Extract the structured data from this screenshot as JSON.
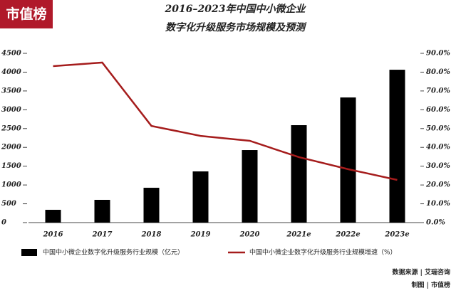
{
  "logo": "市值榜",
  "chart_data": {
    "type": "bar-line",
    "title": "2016–2023年中国中小微企业",
    "subtitle": "数字化升级服务市场规模及预测",
    "categories": [
      "2016",
      "2017",
      "2018",
      "2019",
      "2020",
      "2021e",
      "2022e",
      "2023e"
    ],
    "series": [
      {
        "name": "中国中小微企业数字化升级服务行业规模（亿元）",
        "color": "#000000",
        "type": "bar",
        "values": [
          340,
          605,
          926,
          1361,
          1928,
          2590,
          3327,
          4064
        ]
      },
      {
        "name": "中国中小微企业数字化升级服务行业规模增速（%）",
        "color": "#a51c1c",
        "type": "line",
        "axis": "y2",
        "values": [
          83.2,
          85.1,
          51.4,
          46.1,
          43.5,
          34.8,
          28.4,
          22.7
        ]
      }
    ],
    "ylim": [
      0,
      4500
    ],
    "yticks": [
      0,
      500,
      1000,
      1500,
      2000,
      2500,
      3000,
      3500,
      4000,
      4500
    ],
    "y2lim": [
      0,
      90
    ],
    "y2ticks": [
      {
        "value": 0,
        "label": "0.0%"
      },
      {
        "value": 10,
        "label": "10.0%"
      },
      {
        "value": 20,
        "label": "20.0%"
      },
      {
        "value": 30,
        "label": "30.0%"
      },
      {
        "value": 40,
        "label": "40.0%"
      },
      {
        "value": 50,
        "label": "50.0%"
      },
      {
        "value": 60,
        "label": "60.0%"
      },
      {
        "value": 70,
        "label": "70.0%"
      },
      {
        "value": 80,
        "label": "80.0%"
      },
      {
        "value": 90,
        "label": "90.0%"
      }
    ],
    "legend": "bottom",
    "source": "数据来源 | 艾瑞咨询",
    "credit": "制图 | 市值榜"
  }
}
